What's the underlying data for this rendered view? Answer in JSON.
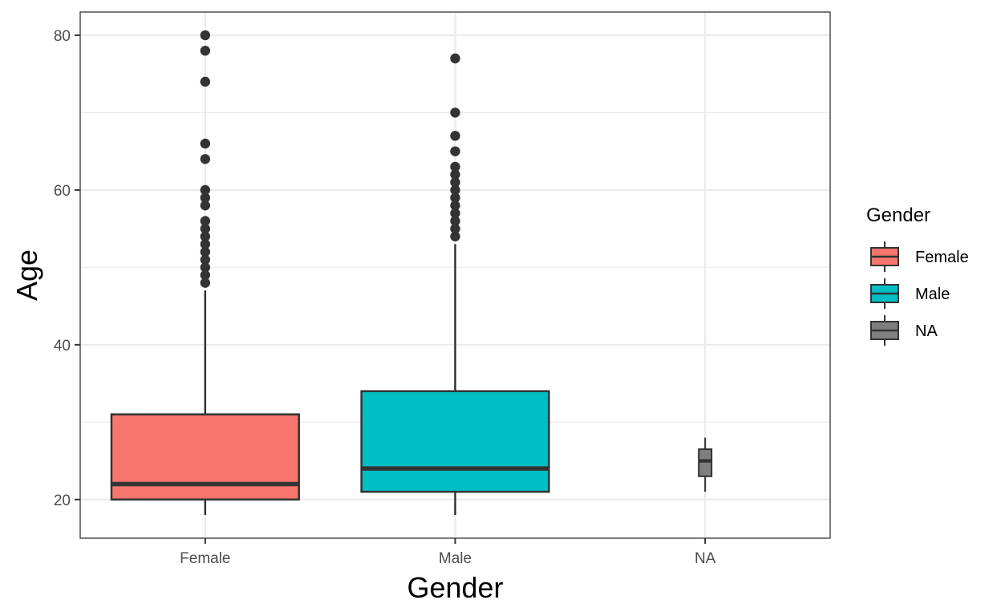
{
  "chart_data": {
    "type": "boxplot",
    "title": "",
    "xlabel": "Gender",
    "ylabel": "Age",
    "ylim": [
      15,
      83
    ],
    "yticks": [
      20,
      40,
      60,
      80
    ],
    "ytick_labels": [
      "20",
      "40",
      "60",
      "80"
    ],
    "grid": true,
    "categories": [
      "Female",
      "Male",
      "NA"
    ],
    "boxes": [
      {
        "category": "Female",
        "color": "#F8766D",
        "whisker_low": 18,
        "q1": 20,
        "median": 22,
        "q3": 31,
        "whisker_high": 47,
        "outliers": [
          48,
          49,
          50,
          51,
          52,
          53,
          54,
          55,
          56,
          58,
          59,
          60,
          64,
          66,
          74,
          78,
          80
        ]
      },
      {
        "category": "Male",
        "color": "#00BFC4",
        "whisker_low": 18,
        "q1": 21,
        "median": 24,
        "q3": 34,
        "whisker_high": 53,
        "outliers": [
          54,
          55,
          56,
          57,
          58,
          59,
          60,
          61,
          62,
          63,
          65,
          67,
          70,
          77
        ]
      },
      {
        "category": "NA",
        "color": "#7F7F7F",
        "whisker_low": 21,
        "q1": 23,
        "median": 25,
        "q3": 26.5,
        "whisker_high": 28,
        "outliers": []
      }
    ],
    "legend": {
      "title": "Gender",
      "position": "right",
      "entries": [
        {
          "label": "Female",
          "color": "#F8766D"
        },
        {
          "label": "Male",
          "color": "#00BFC4"
        },
        {
          "label": "NA",
          "color": "#7F7F7F"
        }
      ]
    }
  }
}
